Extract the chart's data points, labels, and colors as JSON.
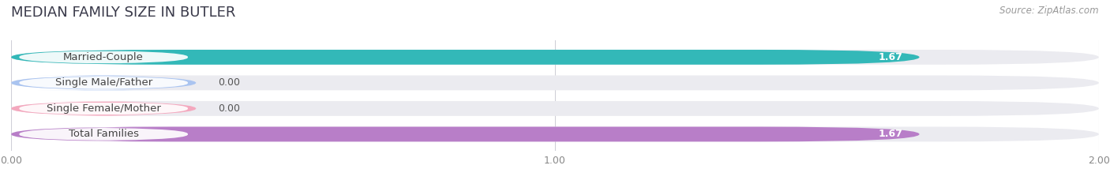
{
  "title": "MEDIAN FAMILY SIZE IN BUTLER",
  "source": "Source: ZipAtlas.com",
  "categories": [
    "Married-Couple",
    "Single Male/Father",
    "Single Female/Mother",
    "Total Families"
  ],
  "values": [
    1.67,
    0.0,
    0.0,
    1.67
  ],
  "bar_colors": [
    "#33b8b8",
    "#aac4f0",
    "#f4a8be",
    "#b87ec8"
  ],
  "bar_bg_color": "#e8eaf0",
  "xlim": [
    0,
    2.0
  ],
  "xticks": [
    0.0,
    1.0,
    2.0
  ],
  "xtick_labels": [
    "0.00",
    "1.00",
    "2.00"
  ],
  "value_labels": [
    "1.67",
    "0.00",
    "0.00",
    "1.67"
  ],
  "background_color": "#ffffff",
  "bar_height": 0.58,
  "row_bg_color": "#ebebf0",
  "title_fontsize": 13,
  "label_fontsize": 9.5,
  "value_fontsize": 9.0,
  "title_color": "#3a3a4a"
}
